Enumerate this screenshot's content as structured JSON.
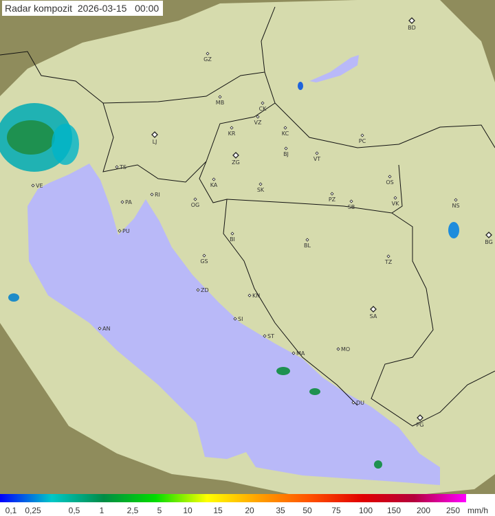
{
  "header": {
    "title": "Radar kompozit  2026-03-15   00:00"
  },
  "map": {
    "cities": [
      "GZ",
      "BD",
      "MB",
      "CK",
      "VZ",
      "KR",
      "KC",
      "PC",
      "LJ",
      "ZG",
      "BJ",
      "VT",
      "TS",
      "VE",
      "RI",
      "KA",
      "SK",
      "OS",
      "PA",
      "OG",
      "PZ",
      "SB",
      "VK",
      "NS",
      "PU",
      "BI",
      "BL",
      "BG",
      "GS",
      "TZ",
      "ZD",
      "KN",
      "SA",
      "SI",
      "AN",
      "ST",
      "MA",
      "MO",
      "DU",
      "PG"
    ],
    "colors": {
      "land": "#9c9a68",
      "coverage": "#eef5c8",
      "sea": "#b9b9f8",
      "border": "#111111"
    }
  },
  "legend": {
    "labels": [
      "0,1",
      "0,25",
      "0,5",
      "1",
      "2,5",
      "5",
      "10",
      "15",
      "20",
      "35",
      "50",
      "75",
      "100",
      "150",
      "200",
      "250"
    ],
    "unit": "mm/h",
    "gradient": [
      "#0000ff",
      "#00c8c8",
      "#008c46",
      "#00dc00",
      "#ffff00",
      "#ffa000",
      "#ff5000",
      "#e00000",
      "#b4003c",
      "#ff00ff"
    ]
  }
}
